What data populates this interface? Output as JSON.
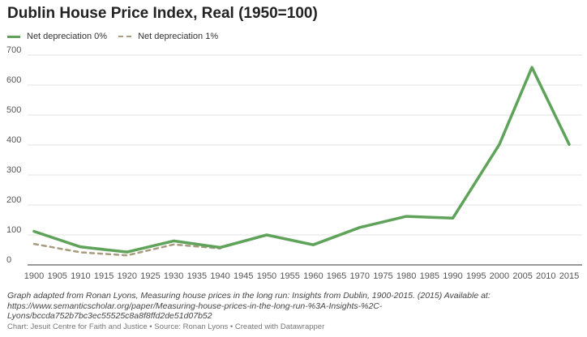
{
  "title": "Dublin House Price Index, Real (1950=100)",
  "note": "Graph adapted from Ronan Lyons, Measuring house prices in the long run: Insights from Dublin, 1900-2015. (2015) Available at: https://www.semanticscholar.org/paper/Measuring-house-prices-in-the-long-run-%3A-Insights-%2C-Lyons/bccda752b7bc3ec55525c8a8f8ffd2de51d07b52",
  "credit": "Chart: Jesuit Centre for Faith and Justice • Source: Ronan Lyons • Created with Datawrapper",
  "colors": {
    "series_solid": "#5fa35a",
    "series_dashed": "#a89b7f",
    "grid": "#e3e3e3",
    "axis_text": "#555555"
  },
  "chart_data": {
    "type": "line",
    "title": "Dublin House Price Index, Real (1950=100)",
    "xlim": [
      1900,
      2015
    ],
    "ylim": [
      0,
      700
    ],
    "x_ticks": [
      "1900",
      "1905",
      "1910",
      "1915",
      "1920",
      "1925",
      "1930",
      "1935",
      "1940",
      "1945",
      "1950",
      "1955",
      "1960",
      "1965",
      "1970",
      "1975",
      "1980",
      "1985",
      "1990",
      "1995",
      "2000",
      "2005",
      "2010",
      "2015"
    ],
    "y_ticks": [
      "0",
      "100",
      "200",
      "300",
      "400",
      "500",
      "600",
      "700"
    ],
    "grid": true,
    "legend_position": "top-left",
    "series": [
      {
        "name": "Net depreciation 0%",
        "style": "solid",
        "color": "#5fa35a",
        "points": [
          [
            1900,
            112
          ],
          [
            1910,
            60
          ],
          [
            1920,
            43
          ],
          [
            1930,
            80
          ],
          [
            1940,
            58
          ],
          [
            1950,
            100
          ],
          [
            1960,
            67
          ],
          [
            1970,
            125
          ],
          [
            1980,
            162
          ],
          [
            1990,
            156
          ],
          [
            2000,
            402
          ],
          [
            2007,
            659
          ],
          [
            2015,
            402
          ]
        ]
      },
      {
        "name": "Net depreciation 1%",
        "style": "dashed",
        "color": "#a89b7f",
        "points": [
          [
            1900,
            70
          ],
          [
            1910,
            42
          ],
          [
            1920,
            32
          ],
          [
            1930,
            68
          ],
          [
            1940,
            55
          ]
        ]
      }
    ]
  }
}
